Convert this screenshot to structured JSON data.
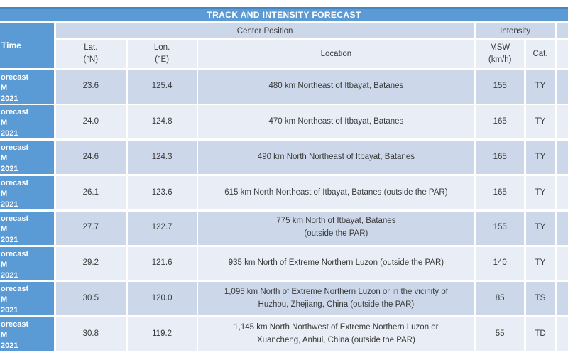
{
  "title_bar": {
    "label": "TRACK AND INTENSITY FORECAST"
  },
  "table": {
    "time_header": "Time",
    "group_headers": {
      "center_position": "Center Position",
      "intensity": "Intensity"
    },
    "columns": {
      "lat": [
        "Lat.",
        "(°N)"
      ],
      "lon": [
        "Lon.",
        "(°E)"
      ],
      "location": "Location",
      "msw": [
        "MSW",
        "(km/h)"
      ],
      "cat": "Cat."
    },
    "rows": [
      {
        "time_lines": [
          "orecast",
          "M",
          "2021"
        ],
        "lat": "23.6",
        "lon": "125.4",
        "location_lines": [
          "480 km Northeast of Itbayat, Batanes"
        ],
        "msw": "155",
        "cat": "TY"
      },
      {
        "time_lines": [
          "orecast",
          "M",
          "2021"
        ],
        "lat": "24.0",
        "lon": "124.8",
        "location_lines": [
          "470 km Northeast of Itbayat, Batanes"
        ],
        "msw": "165",
        "cat": "TY"
      },
      {
        "time_lines": [
          "orecast",
          "M",
          "2021"
        ],
        "lat": "24.6",
        "lon": "124.3",
        "location_lines": [
          "490 km North Northeast of Itbayat, Batanes"
        ],
        "msw": "165",
        "cat": "TY"
      },
      {
        "time_lines": [
          "orecast",
          "M",
          "2021"
        ],
        "lat": "26.1",
        "lon": "123.6",
        "location_lines": [
          "615 km North Northeast of Itbayat, Batanes (outside the PAR)"
        ],
        "msw": "165",
        "cat": "TY"
      },
      {
        "time_lines": [
          "orecast",
          "M",
          "2021"
        ],
        "lat": "27.7",
        "lon": "122.7",
        "location_lines": [
          "775 km North of Itbayat, Batanes",
          "(outside the PAR)"
        ],
        "msw": "155",
        "cat": "TY"
      },
      {
        "time_lines": [
          "orecast",
          "M",
          "2021"
        ],
        "lat": "29.2",
        "lon": "121.6",
        "location_lines": [
          "935 km North of Extreme Northern Luzon (outside the PAR)"
        ],
        "msw": "140",
        "cat": "TY"
      },
      {
        "time_lines": [
          "orecast",
          "M",
          "2021"
        ],
        "lat": "30.5",
        "lon": "120.0",
        "location_lines": [
          "1,095 km North of Extreme Northern Luzon or in the vicinity of",
          "Huzhou, Zhejiang, China (outside the PAR)"
        ],
        "msw": "85",
        "cat": "TS"
      },
      {
        "time_lines": [
          "orecast",
          "M",
          "2021"
        ],
        "lat": "30.8",
        "lon": "119.2",
        "location_lines": [
          "1,145 km North Northwest of Extreme Northern Luzon or",
          "Xuancheng, Anhui, China (outside the PAR)"
        ],
        "msw": "55",
        "cat": "TD"
      }
    ]
  },
  "colors": {
    "header_blue": "#5b9bd5",
    "title_top_border": "#4886c2",
    "row_dark": "#ccd7e9",
    "row_light": "#e9edf5",
    "text_dark": "#3a3a3a",
    "text_white": "#ffffff"
  }
}
